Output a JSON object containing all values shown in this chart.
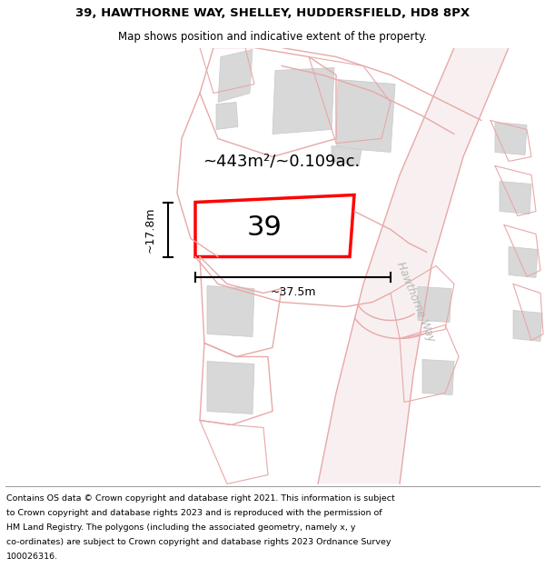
{
  "title_line1": "39, HAWTHORNE WAY, SHELLEY, HUDDERSFIELD, HD8 8PX",
  "title_line2": "Map shows position and indicative extent of the property.",
  "footer_lines": [
    "Contains OS data © Crown copyright and database right 2021. This information is subject",
    "to Crown copyright and database rights 2023 and is reproduced with the permission of",
    "HM Land Registry. The polygons (including the associated geometry, namely x, y",
    "co-ordinates) are subject to Crown copyright and database rights 2023 Ordnance Survey",
    "100026316."
  ],
  "area_text": "~443m²/~0.109ac.",
  "width_label": "~37.5m",
  "height_label": "~17.8m",
  "property_number": "39",
  "bg_color": "#ffffff",
  "road_pink": "#f5c8c8",
  "road_line": "#e8a8a8",
  "building_fill": "#d8d8d8",
  "building_edge": "#c8c8c8",
  "highlight_color": "#ff0000",
  "road_label": "Hawthorne Way"
}
